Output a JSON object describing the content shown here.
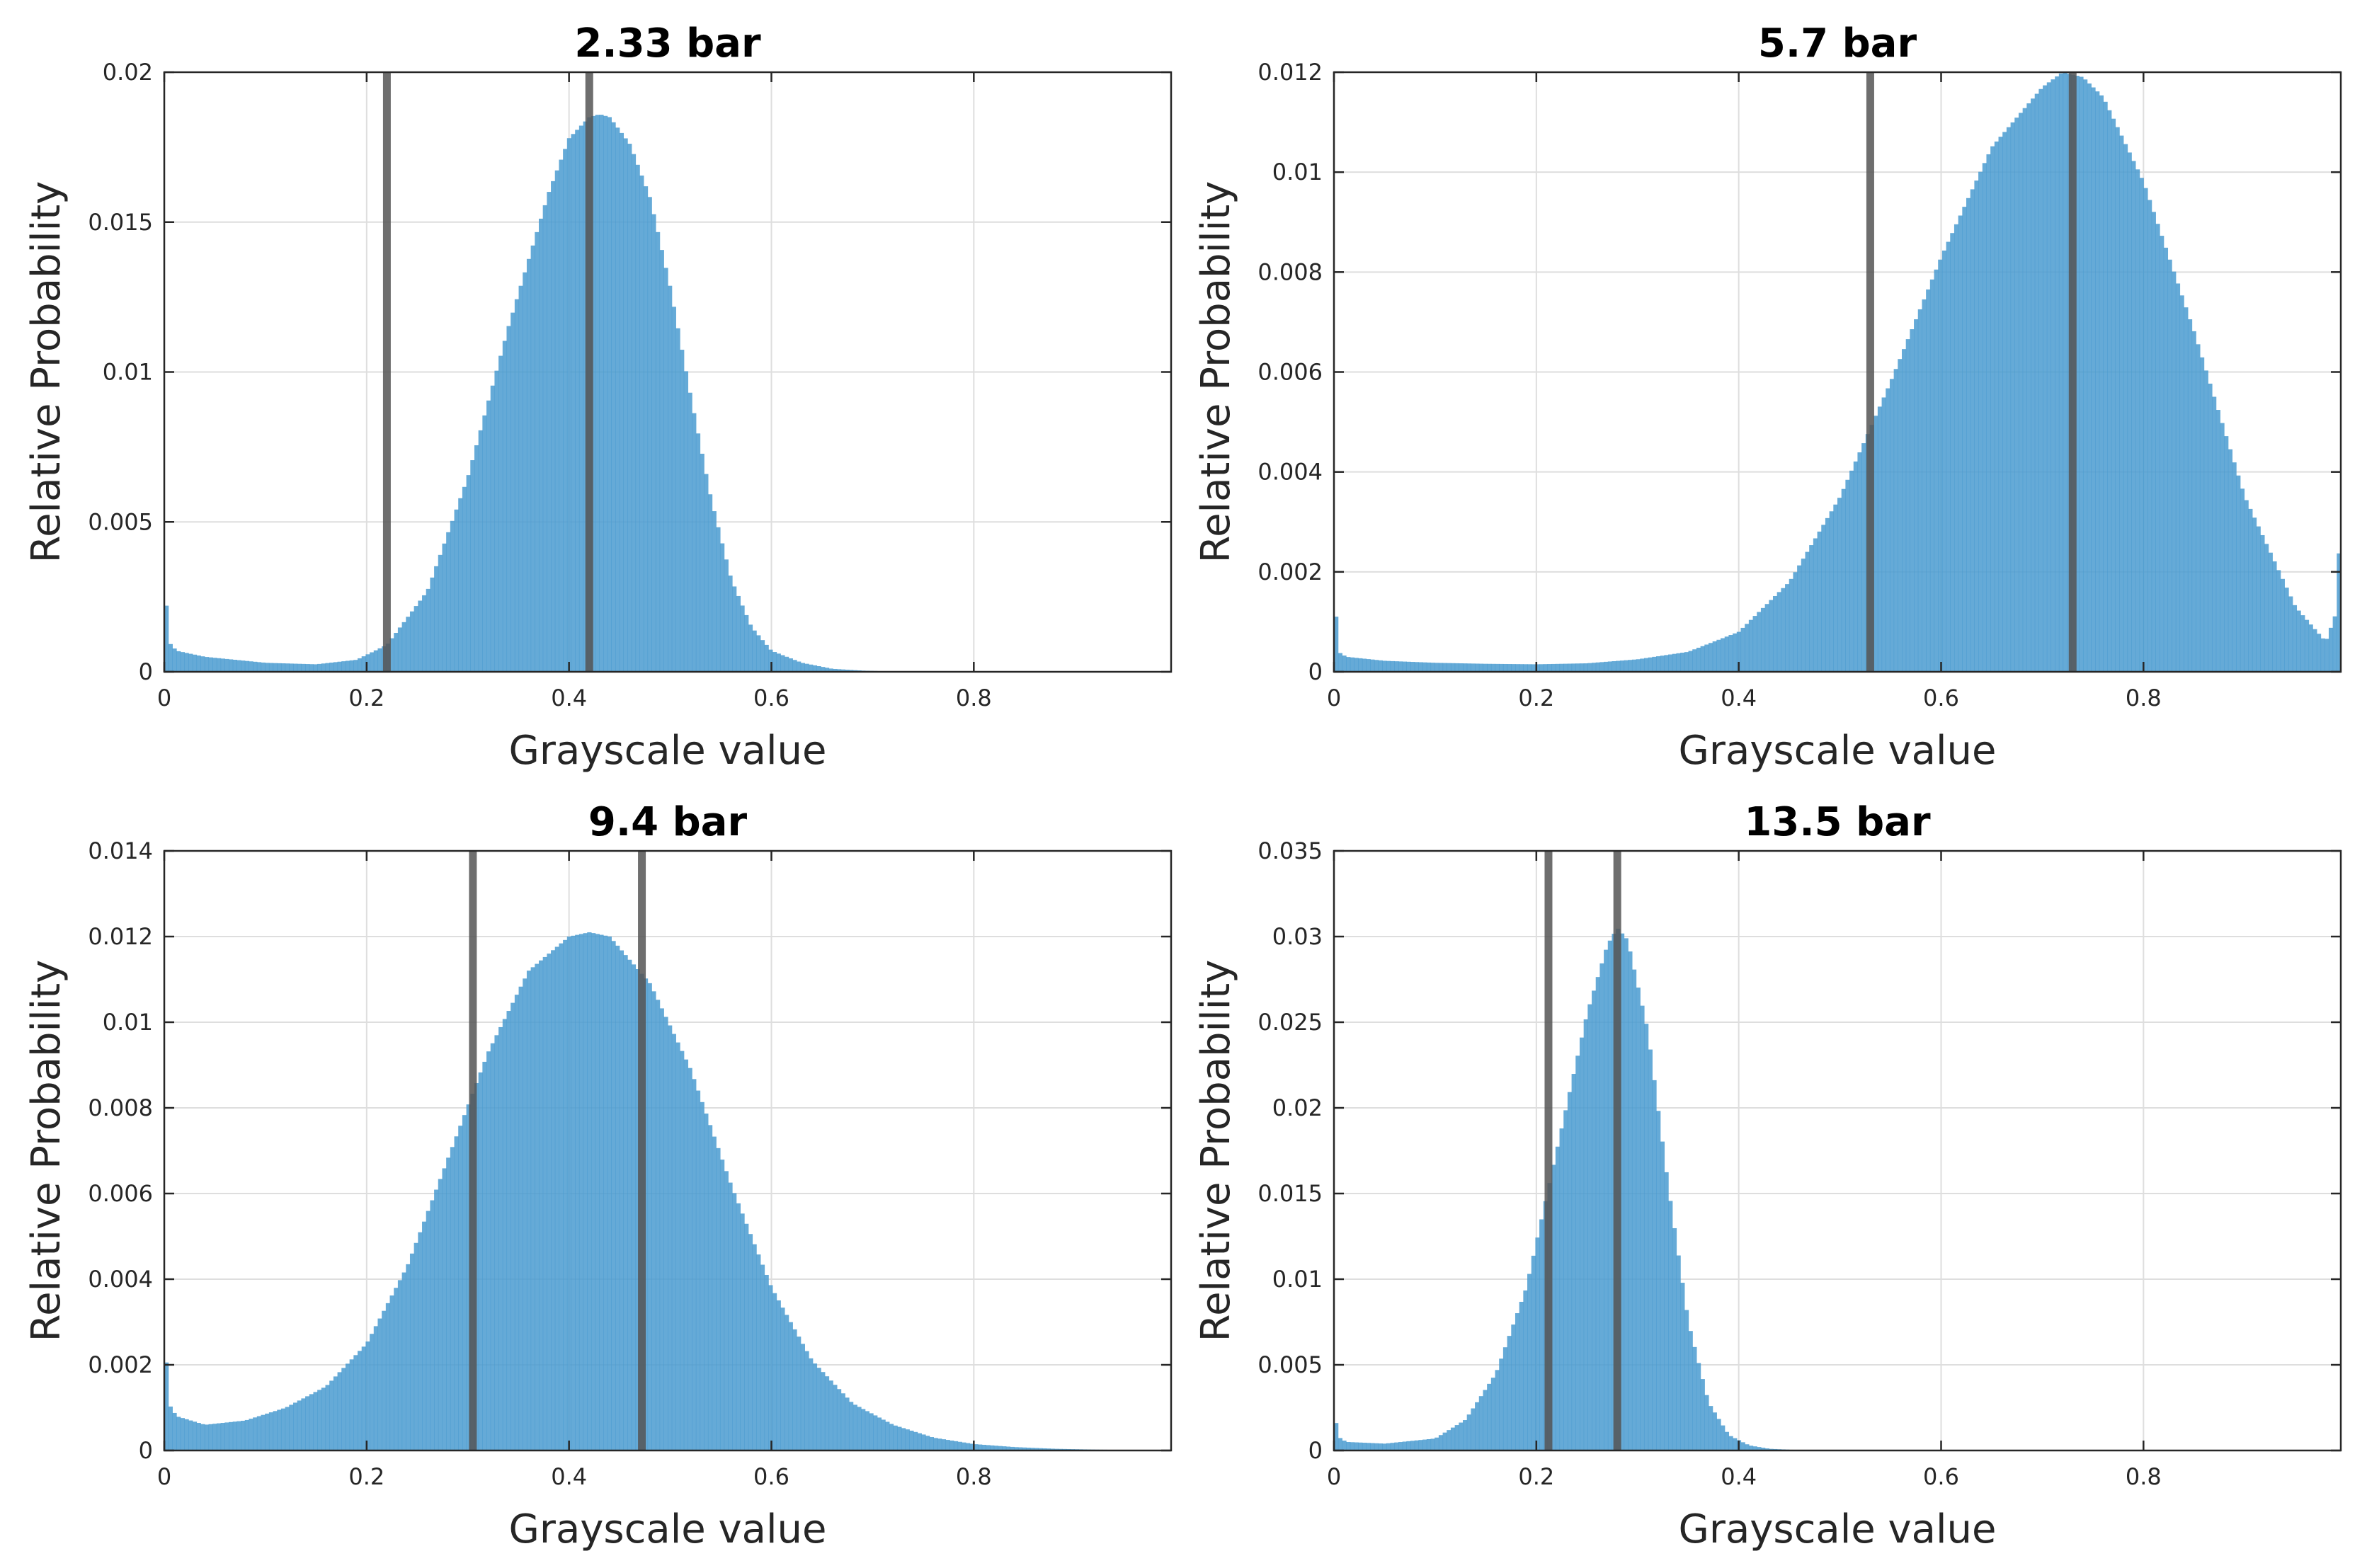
{
  "chart_data": [
    {
      "type": "bar",
      "title": "2.33 bar",
      "xlabel": "Grayscale value",
      "ylabel": "Relative Probability",
      "xlim": [
        0,
        0.995
      ],
      "ylim": [
        0,
        0.02
      ],
      "xticks": [
        "0",
        "0.2",
        "0.4",
        "0.6",
        "0.8"
      ],
      "yticks": [
        "0",
        "0.005",
        "0.01",
        "0.015",
        "0.02"
      ],
      "grid": true,
      "bar_color": "#4a9bd0",
      "vline_color": "#555555",
      "vlines": [
        0.22,
        0.42
      ],
      "distribution": {
        "x": [
          0.0,
          0.004,
          0.012,
          0.04,
          0.1,
          0.15,
          0.19,
          0.22,
          0.26,
          0.3,
          0.34,
          0.38,
          0.4,
          0.42,
          0.43,
          0.44,
          0.46,
          0.48,
          0.5,
          0.52,
          0.54,
          0.56,
          0.58,
          0.6,
          0.63,
          0.66,
          0.69,
          0.72,
          0.995
        ],
        "y": [
          0.0034,
          0.001,
          0.0007,
          0.0005,
          0.0003,
          0.00025,
          0.0004,
          0.0009,
          0.0027,
          0.0065,
          0.0115,
          0.016,
          0.0178,
          0.0185,
          0.0186,
          0.0185,
          0.0176,
          0.0158,
          0.0128,
          0.0092,
          0.0058,
          0.0031,
          0.0015,
          0.0007,
          0.0003,
          0.0001,
          4e-05,
          1e-05,
          0.0
        ]
      }
    },
    {
      "type": "bar",
      "title": "5.7 bar",
      "xlabel": "Grayscale value",
      "ylabel": "Relative Probability",
      "xlim": [
        0,
        0.995
      ],
      "ylim": [
        0,
        0.012
      ],
      "xticks": [
        "0",
        "0.2",
        "0.4",
        "0.6",
        "0.8"
      ],
      "yticks": [
        "0",
        "0.002",
        "0.004",
        "0.006",
        "0.008",
        "0.01",
        "0.012"
      ],
      "grid": true,
      "bar_color": "#4a9bd0",
      "vline_color": "#555555",
      "vlines": [
        0.53,
        0.73
      ],
      "distribution": {
        "x": [
          0.0,
          0.004,
          0.012,
          0.05,
          0.1,
          0.15,
          0.2,
          0.25,
          0.3,
          0.35,
          0.4,
          0.45,
          0.5,
          0.55,
          0.6,
          0.65,
          0.7,
          0.72,
          0.74,
          0.76,
          0.8,
          0.85,
          0.9,
          0.95,
          0.98,
          0.989,
          0.995
        ],
        "y": [
          0.0018,
          0.0004,
          0.0003,
          0.00022,
          0.00018,
          0.00016,
          0.00015,
          0.00017,
          0.00025,
          0.0004,
          0.0008,
          0.0018,
          0.0035,
          0.0058,
          0.0083,
          0.0105,
          0.0117,
          0.012,
          0.0119,
          0.0115,
          0.0098,
          0.0068,
          0.0035,
          0.0013,
          0.0006,
          0.0011,
          0.003
        ]
      }
    },
    {
      "type": "bar",
      "title": "9.4 bar",
      "xlabel": "Grayscale value",
      "ylabel": "Relative Probability",
      "xlim": [
        0,
        0.995
      ],
      "ylim": [
        0,
        0.014
      ],
      "xticks": [
        "0",
        "0.2",
        "0.4",
        "0.6",
        "0.8"
      ],
      "yticks": [
        "0",
        "0.002",
        "0.004",
        "0.006",
        "0.008",
        "0.01",
        "0.012",
        "0.014"
      ],
      "grid": true,
      "bar_color": "#4a9bd0",
      "vline_color": "#555555",
      "vlines": [
        0.305,
        0.472
      ],
      "distribution": {
        "x": [
          0.0,
          0.004,
          0.012,
          0.04,
          0.08,
          0.12,
          0.16,
          0.2,
          0.24,
          0.28,
          0.32,
          0.36,
          0.4,
          0.42,
          0.44,
          0.48,
          0.52,
          0.56,
          0.6,
          0.64,
          0.68,
          0.72,
          0.76,
          0.8,
          0.84,
          0.88,
          0.92,
          0.995
        ],
        "y": [
          0.003,
          0.0011,
          0.0008,
          0.0006,
          0.0007,
          0.001,
          0.0015,
          0.0025,
          0.0043,
          0.0068,
          0.0093,
          0.0112,
          0.012,
          0.0121,
          0.012,
          0.0109,
          0.0089,
          0.0062,
          0.0038,
          0.0021,
          0.0011,
          0.0006,
          0.0003,
          0.00015,
          8e-05,
          4e-05,
          2e-05,
          0.0
        ]
      }
    },
    {
      "type": "bar",
      "title": "13.5 bar",
      "xlabel": "Grayscale value",
      "ylabel": "Relative Probability",
      "xlim": [
        0,
        0.995
      ],
      "ylim": [
        0,
        0.035
      ],
      "xticks": [
        "0",
        "0.2",
        "0.4",
        "0.6",
        "0.8"
      ],
      "yticks": [
        "0",
        "0.005",
        "0.01",
        "0.015",
        "0.02",
        "0.025",
        "0.03",
        "0.035"
      ],
      "grid": true,
      "bar_color": "#4a9bd0",
      "vline_color": "#555555",
      "vlines": [
        0.212,
        0.28
      ],
      "distribution": {
        "x": [
          0.0,
          0.004,
          0.012,
          0.05,
          0.1,
          0.13,
          0.16,
          0.19,
          0.22,
          0.25,
          0.27,
          0.28,
          0.29,
          0.31,
          0.33,
          0.35,
          0.37,
          0.39,
          0.41,
          0.43,
          0.46,
          0.995
        ],
        "y": [
          0.0024,
          0.0008,
          0.0005,
          0.0004,
          0.0007,
          0.0018,
          0.0045,
          0.0095,
          0.0175,
          0.0255,
          0.0295,
          0.0305,
          0.0298,
          0.0245,
          0.0155,
          0.0075,
          0.0028,
          0.0009,
          0.0003,
          0.0001,
          2e-05,
          0.0
        ]
      }
    }
  ]
}
